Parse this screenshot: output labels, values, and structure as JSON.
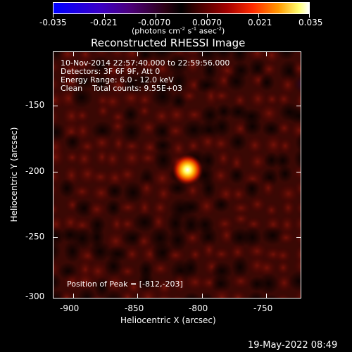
{
  "colorbar": {
    "ticks": [
      "-0.035",
      "-0.021",
      "-0.0070",
      "0.0070",
      "0.021",
      "0.035"
    ],
    "units_prefix": "(photons cm",
    "units_sup1": "-2",
    "units_mid1": " s",
    "units_sup2": "-1",
    "units_mid2": " asec",
    "units_sup3": "-2",
    "units_suffix": ")"
  },
  "image_title": "Reconstructed RHESSI Image",
  "info": {
    "time_range": "10-Nov-2014 22:57:40.000 to 22:59:56.000",
    "detectors": "Detectors: 3F 6F 9F, Att 0",
    "energy": "Energy Range: 6.0 - 12.0 keV",
    "clean": "Clean    Total counts: 9.55E+03"
  },
  "peak_label": "Position of Peak = [-812,-203]",
  "axes": {
    "xlabel": "Heliocentric X (arcsec)",
    "ylabel": "Heliocentric Y (arcsec)",
    "xticks": [
      "-900",
      "-850",
      "-800",
      "-750"
    ],
    "yticks": [
      "-150",
      "-200",
      "-250",
      "-300"
    ]
  },
  "timestamp": "19-May-2022 08:49",
  "chart_data": {
    "type": "heatmap",
    "title": "Reconstructed RHESSI Image",
    "xlabel": "Heliocentric X (arcsec)",
    "ylabel": "Heliocentric Y (arcsec)",
    "xlim": [
      -915,
      -724
    ],
    "ylim": [
      -302,
      -113
    ],
    "colorbar_range": [
      -0.035,
      0.035
    ],
    "peak": {
      "x": -812,
      "y": -203
    },
    "colormap": "red-temperature (blue negative, black zero, red-yellow-white positive)",
    "colors": {
      "positive_high": "#ffffff",
      "positive_mid": "#ff8000",
      "positive_low": "#8b0000",
      "zero": "#000000",
      "negative": "#3a00c8"
    }
  }
}
